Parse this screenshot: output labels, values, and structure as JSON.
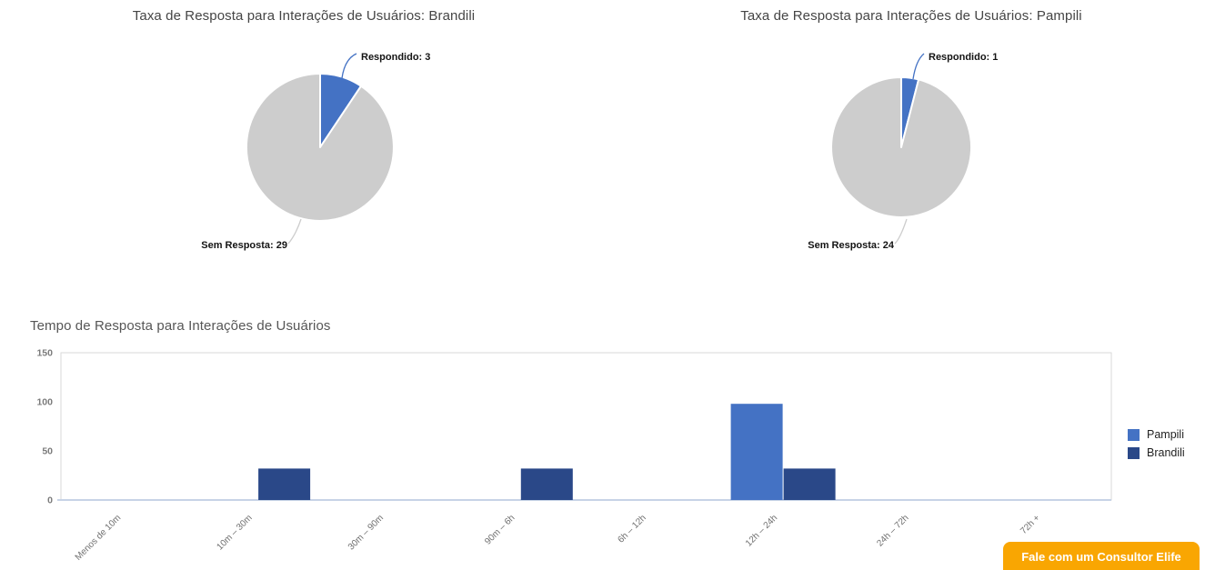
{
  "chart_data": [
    {
      "type": "pie",
      "title": "Taxa de Resposta para Interações de Usuários: Brandili",
      "label_format": "{label}: {value}",
      "slices": [
        {
          "label": "Respondido",
          "value": 3,
          "color": "#4472C4"
        },
        {
          "label": "Sem Resposta",
          "value": 29,
          "color": "#CDCDCD"
        }
      ]
    },
    {
      "type": "pie",
      "title": "Taxa de Resposta para Interações de Usuários: Pampili",
      "label_format": "{label}: {value}",
      "slices": [
        {
          "label": "Respondido",
          "value": 1,
          "color": "#4472C4"
        },
        {
          "label": "Sem Resposta",
          "value": 24,
          "color": "#CDCDCD"
        }
      ]
    },
    {
      "type": "bar",
      "title": "Tempo de Resposta para Interações de Usuários",
      "categories": [
        "Menos de 10m",
        "10m – 30m",
        "30m – 90m",
        "90m – 6h",
        "6h – 12h",
        "12h – 24h",
        "24h – 72h",
        "72h +"
      ],
      "series": [
        {
          "name": "Pampili",
          "color": "#4472C4",
          "values": [
            0,
            0,
            0,
            0,
            0,
            98,
            0,
            0
          ]
        },
        {
          "name": "Brandili",
          "color": "#2A4888",
          "values": [
            0,
            32,
            0,
            32,
            0,
            32,
            0,
            0
          ]
        }
      ],
      "xlabel": "",
      "ylabel": "",
      "ylim": [
        0,
        150
      ],
      "yticks": [
        0,
        50,
        100,
        150
      ],
      "grid": false,
      "legend_position": "right"
    }
  ],
  "cta_button": {
    "label": "Fale com um Consultor Elife"
  },
  "colors": {
    "accent_blue": "#4472C4",
    "dark_blue": "#2A4888",
    "pie_gray": "#CDCDCD",
    "cta_orange": "#F9A602",
    "plot_border": "#D9D9D9",
    "axis_baseline": "#C7D3E6"
  }
}
